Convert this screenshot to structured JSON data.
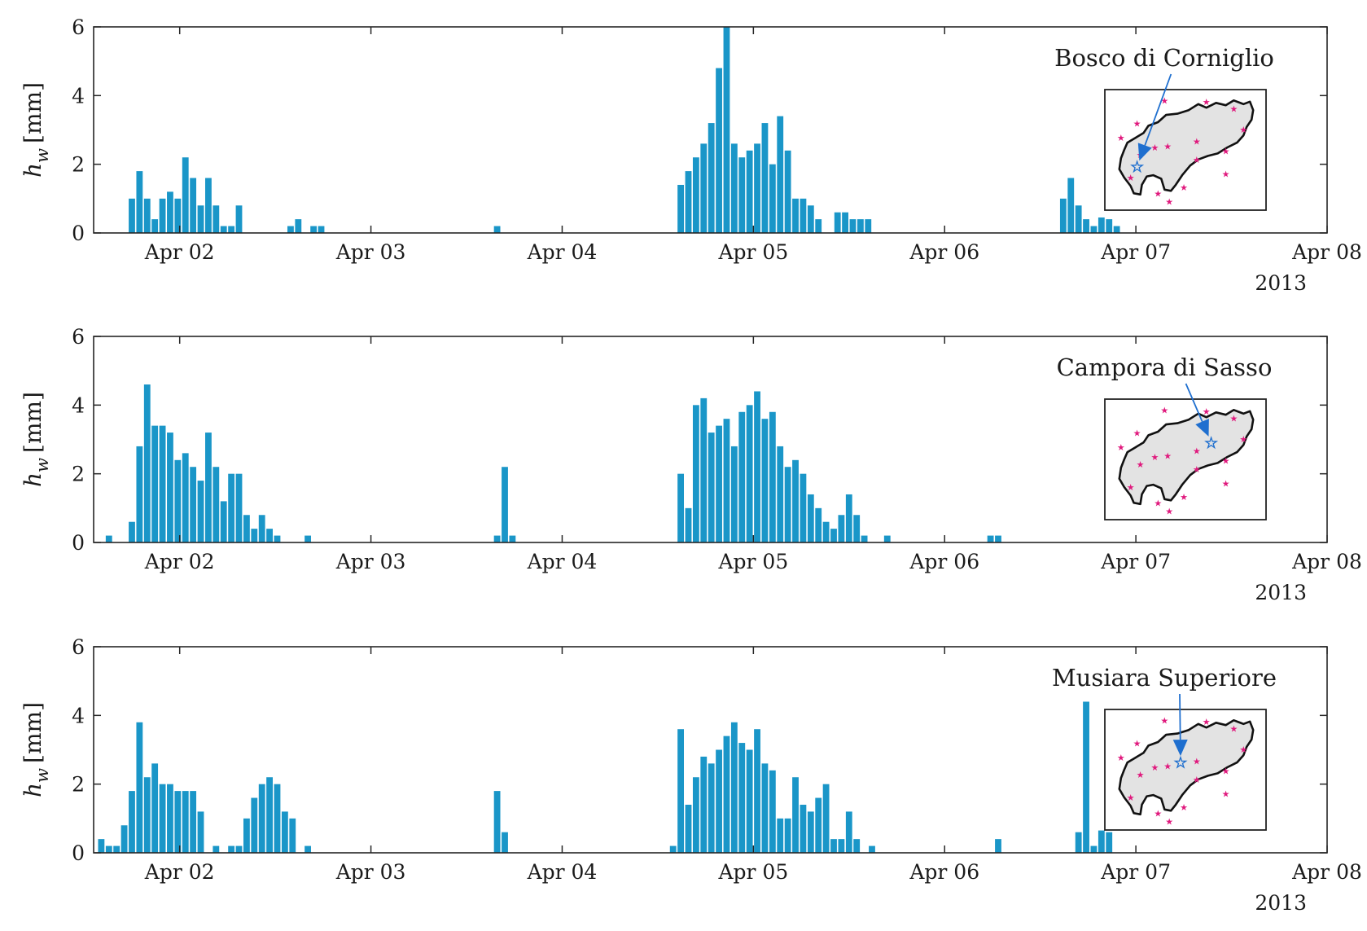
{
  "chart_data": [
    {
      "type": "bar",
      "station": "Bosco di Corniglio",
      "ylabel_var": "h",
      "ylabel_sub": "w",
      "ylabel_unit": "[mm]",
      "ylim": [
        0,
        6
      ],
      "yticks": [
        "0",
        "2",
        "4",
        "6"
      ],
      "xlim_days": [
        1.55,
        8.0
      ],
      "xticks": [
        {
          "day": 2,
          "label": "Apr 02"
        },
        {
          "day": 3,
          "label": "Apr 03"
        },
        {
          "day": 4,
          "label": "Apr 04"
        },
        {
          "day": 5,
          "label": "Apr 05"
        },
        {
          "day": 6,
          "label": "Apr 06"
        },
        {
          "day": 7,
          "label": "Apr 07"
        },
        {
          "day": 8,
          "label": "Apr 08"
        }
      ],
      "year_label": "2013",
      "bar_color": "#1a96c8",
      "bar_width_days": 0.0333,
      "bars": [
        [
          1.75,
          1.0
        ],
        [
          1.79,
          1.8
        ],
        [
          1.83,
          1.0
        ],
        [
          1.87,
          0.4
        ],
        [
          1.91,
          1.0
        ],
        [
          1.95,
          1.2
        ],
        [
          1.99,
          1.0
        ],
        [
          2.03,
          2.2
        ],
        [
          2.07,
          1.6
        ],
        [
          2.11,
          0.8
        ],
        [
          2.15,
          1.6
        ],
        [
          2.19,
          0.8
        ],
        [
          2.23,
          0.2
        ],
        [
          2.27,
          0.2
        ],
        [
          2.31,
          0.8
        ],
        [
          2.58,
          0.2
        ],
        [
          2.62,
          0.4
        ],
        [
          2.7,
          0.2
        ],
        [
          2.74,
          0.2
        ],
        [
          3.66,
          0.2
        ],
        [
          4.62,
          1.4
        ],
        [
          4.66,
          1.8
        ],
        [
          4.7,
          2.2
        ],
        [
          4.74,
          2.6
        ],
        [
          4.78,
          3.2
        ],
        [
          4.82,
          4.8
        ],
        [
          4.86,
          6.0
        ],
        [
          4.9,
          2.6
        ],
        [
          4.94,
          2.2
        ],
        [
          4.98,
          2.4
        ],
        [
          5.02,
          2.6
        ],
        [
          5.06,
          3.2
        ],
        [
          5.1,
          2.0
        ],
        [
          5.14,
          3.4
        ],
        [
          5.18,
          2.4
        ],
        [
          5.22,
          1.0
        ],
        [
          5.26,
          1.0
        ],
        [
          5.3,
          0.8
        ],
        [
          5.34,
          0.4
        ],
        [
          5.44,
          0.6
        ],
        [
          5.48,
          0.6
        ],
        [
          5.52,
          0.4
        ],
        [
          5.56,
          0.4
        ],
        [
          5.6,
          0.4
        ],
        [
          6.62,
          1.0
        ],
        [
          6.66,
          1.6
        ],
        [
          6.7,
          0.8
        ],
        [
          6.74,
          0.4
        ],
        [
          6.78,
          0.2
        ],
        [
          6.82,
          0.45
        ],
        [
          6.86,
          0.4
        ],
        [
          6.9,
          0.2
        ]
      ],
      "inset": {
        "star_fx": 0.2,
        "star_fy": 0.64
      }
    },
    {
      "type": "bar",
      "station": "Campora di Sasso",
      "ylabel_var": "h",
      "ylabel_sub": "w",
      "ylabel_unit": "[mm]",
      "ylim": [
        0,
        6
      ],
      "yticks": [
        "0",
        "2",
        "4",
        "6"
      ],
      "xlim_days": [
        1.55,
        8.0
      ],
      "xticks": [
        {
          "day": 2,
          "label": "Apr 02"
        },
        {
          "day": 3,
          "label": "Apr 03"
        },
        {
          "day": 4,
          "label": "Apr 04"
        },
        {
          "day": 5,
          "label": "Apr 05"
        },
        {
          "day": 6,
          "label": "Apr 06"
        },
        {
          "day": 7,
          "label": "Apr 07"
        },
        {
          "day": 8,
          "label": "Apr 08"
        }
      ],
      "year_label": "2013",
      "bar_color": "#1a96c8",
      "bar_width_days": 0.0333,
      "bars": [
        [
          1.63,
          0.2
        ],
        [
          1.75,
          0.6
        ],
        [
          1.79,
          2.8
        ],
        [
          1.83,
          4.6
        ],
        [
          1.87,
          3.4
        ],
        [
          1.91,
          3.4
        ],
        [
          1.95,
          3.2
        ],
        [
          1.99,
          2.4
        ],
        [
          2.03,
          2.6
        ],
        [
          2.07,
          2.2
        ],
        [
          2.11,
          1.8
        ],
        [
          2.15,
          3.2
        ],
        [
          2.19,
          2.2
        ],
        [
          2.23,
          1.2
        ],
        [
          2.27,
          2.0
        ],
        [
          2.31,
          2.0
        ],
        [
          2.35,
          0.8
        ],
        [
          2.39,
          0.4
        ],
        [
          2.43,
          0.8
        ],
        [
          2.47,
          0.4
        ],
        [
          2.51,
          0.2
        ],
        [
          2.67,
          0.2
        ],
        [
          3.66,
          0.2
        ],
        [
          3.7,
          2.2
        ],
        [
          3.74,
          0.2
        ],
        [
          4.62,
          2.0
        ],
        [
          4.66,
          1.0
        ],
        [
          4.7,
          4.0
        ],
        [
          4.74,
          4.2
        ],
        [
          4.78,
          3.2
        ],
        [
          4.82,
          3.4
        ],
        [
          4.86,
          3.6
        ],
        [
          4.9,
          2.8
        ],
        [
          4.94,
          3.8
        ],
        [
          4.98,
          4.0
        ],
        [
          5.02,
          4.4
        ],
        [
          5.06,
          3.6
        ],
        [
          5.1,
          3.8
        ],
        [
          5.14,
          2.8
        ],
        [
          5.18,
          2.2
        ],
        [
          5.22,
          2.4
        ],
        [
          5.26,
          2.0
        ],
        [
          5.3,
          1.4
        ],
        [
          5.34,
          1.0
        ],
        [
          5.38,
          0.6
        ],
        [
          5.42,
          0.4
        ],
        [
          5.46,
          0.8
        ],
        [
          5.5,
          1.4
        ],
        [
          5.54,
          0.8
        ],
        [
          5.58,
          0.2
        ],
        [
          5.7,
          0.2
        ],
        [
          6.24,
          0.2
        ],
        [
          6.28,
          0.2
        ]
      ],
      "inset": {
        "star_fx": 0.66,
        "star_fy": 0.36
      }
    },
    {
      "type": "bar",
      "station": "Musiara Superiore",
      "ylabel_var": "h",
      "ylabel_sub": "w",
      "ylabel_unit": "[mm]",
      "ylim": [
        0,
        6
      ],
      "yticks": [
        "0",
        "2",
        "4",
        "6"
      ],
      "xlim_days": [
        1.55,
        8.0
      ],
      "xticks": [
        {
          "day": 2,
          "label": "Apr 02"
        },
        {
          "day": 3,
          "label": "Apr 03"
        },
        {
          "day": 4,
          "label": "Apr 04"
        },
        {
          "day": 5,
          "label": "Apr 05"
        },
        {
          "day": 6,
          "label": "Apr 06"
        },
        {
          "day": 7,
          "label": "Apr 07"
        },
        {
          "day": 8,
          "label": "Apr 08"
        }
      ],
      "year_label": "2013",
      "bar_color": "#1a96c8",
      "bar_width_days": 0.0333,
      "bars": [
        [
          1.59,
          0.4
        ],
        [
          1.63,
          0.2
        ],
        [
          1.67,
          0.2
        ],
        [
          1.71,
          0.8
        ],
        [
          1.75,
          1.8
        ],
        [
          1.79,
          3.8
        ],
        [
          1.83,
          2.2
        ],
        [
          1.87,
          2.6
        ],
        [
          1.91,
          2.0
        ],
        [
          1.95,
          2.0
        ],
        [
          1.99,
          1.8
        ],
        [
          2.03,
          1.8
        ],
        [
          2.07,
          1.8
        ],
        [
          2.11,
          1.2
        ],
        [
          2.19,
          0.2
        ],
        [
          2.27,
          0.2
        ],
        [
          2.31,
          0.2
        ],
        [
          2.35,
          1.0
        ],
        [
          2.39,
          1.6
        ],
        [
          2.43,
          2.0
        ],
        [
          2.47,
          2.2
        ],
        [
          2.51,
          2.0
        ],
        [
          2.55,
          1.2
        ],
        [
          2.59,
          1.0
        ],
        [
          2.67,
          0.2
        ],
        [
          3.66,
          1.8
        ],
        [
          3.7,
          0.6
        ],
        [
          4.58,
          0.2
        ],
        [
          4.62,
          3.6
        ],
        [
          4.66,
          1.4
        ],
        [
          4.7,
          2.2
        ],
        [
          4.74,
          2.8
        ],
        [
          4.78,
          2.6
        ],
        [
          4.82,
          3.0
        ],
        [
          4.86,
          3.4
        ],
        [
          4.9,
          3.8
        ],
        [
          4.94,
          3.2
        ],
        [
          4.98,
          3.0
        ],
        [
          5.02,
          3.6
        ],
        [
          5.06,
          2.6
        ],
        [
          5.1,
          2.4
        ],
        [
          5.14,
          1.0
        ],
        [
          5.18,
          1.0
        ],
        [
          5.22,
          2.2
        ],
        [
          5.26,
          1.4
        ],
        [
          5.3,
          1.2
        ],
        [
          5.34,
          1.6
        ],
        [
          5.38,
          2.0
        ],
        [
          5.42,
          0.4
        ],
        [
          5.46,
          0.4
        ],
        [
          5.5,
          1.2
        ],
        [
          5.54,
          0.4
        ],
        [
          5.62,
          0.2
        ],
        [
          6.28,
          0.4
        ],
        [
          6.7,
          0.6
        ],
        [
          6.74,
          4.4
        ],
        [
          6.78,
          0.2
        ],
        [
          6.82,
          0.65
        ],
        [
          6.86,
          0.6
        ]
      ],
      "inset": {
        "star_fx": 0.47,
        "star_fy": 0.44
      }
    }
  ]
}
